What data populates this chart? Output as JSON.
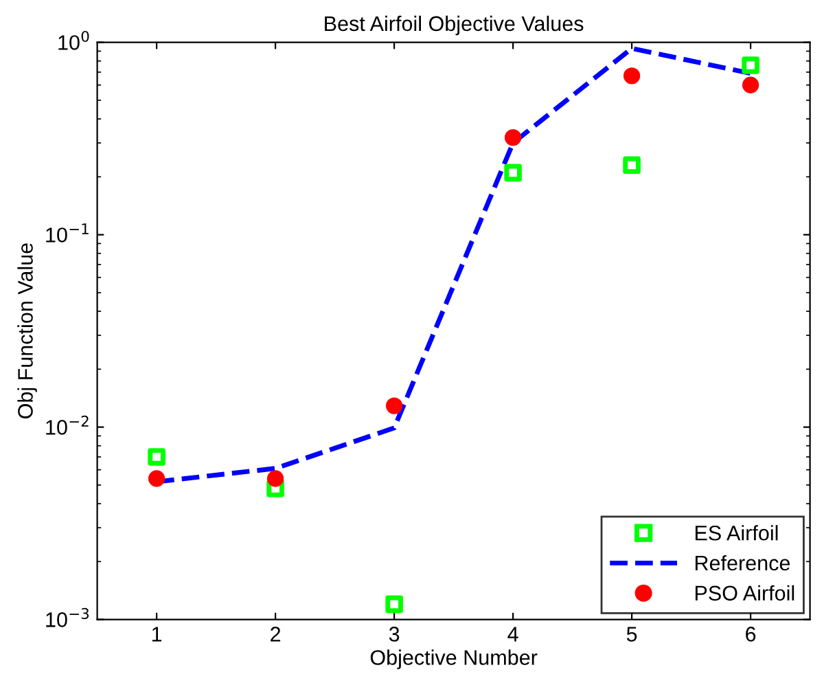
{
  "chart_data": {
    "type": "scatter",
    "title": "Best Airfoil Objective Values",
    "xlabel": "Objective Number",
    "ylabel": "Obj Function Value",
    "x": [
      1,
      2,
      3,
      4,
      5,
      6
    ],
    "series": [
      {
        "name": "ES Airfoil",
        "marker": "square",
        "color": "#00ff00",
        "values": [
          0.007,
          0.0048,
          0.0012,
          0.21,
          0.23,
          0.76
        ]
      },
      {
        "name": "Reference",
        "type": "line",
        "line_style": "dashed",
        "marker": "none",
        "color": "#0000ff",
        "values": [
          0.0052,
          0.0061,
          0.0099,
          0.3,
          0.93,
          0.69
        ]
      },
      {
        "name": "PSO Airfoil",
        "marker": "circle",
        "color": "#ff0000",
        "values": [
          0.0054,
          0.0054,
          0.0129,
          0.32,
          0.67,
          0.6
        ]
      }
    ],
    "log": "y",
    "xlim": [
      0.5,
      6.5
    ],
    "xticks": [
      1,
      2,
      3,
      4,
      5,
      6
    ],
    "ylim": [
      0.001,
      1
    ],
    "yticks": [
      {
        "value": 0.001,
        "label": "10$^{−3}$"
      },
      {
        "value": 0.01,
        "label": "10$^{−2}$"
      },
      {
        "value": 0.1,
        "label": "10$^{−1}$"
      },
      {
        "value": 1,
        "label": "10$^{0}$"
      }
    ],
    "grid": false,
    "legend": "bottom right"
  }
}
